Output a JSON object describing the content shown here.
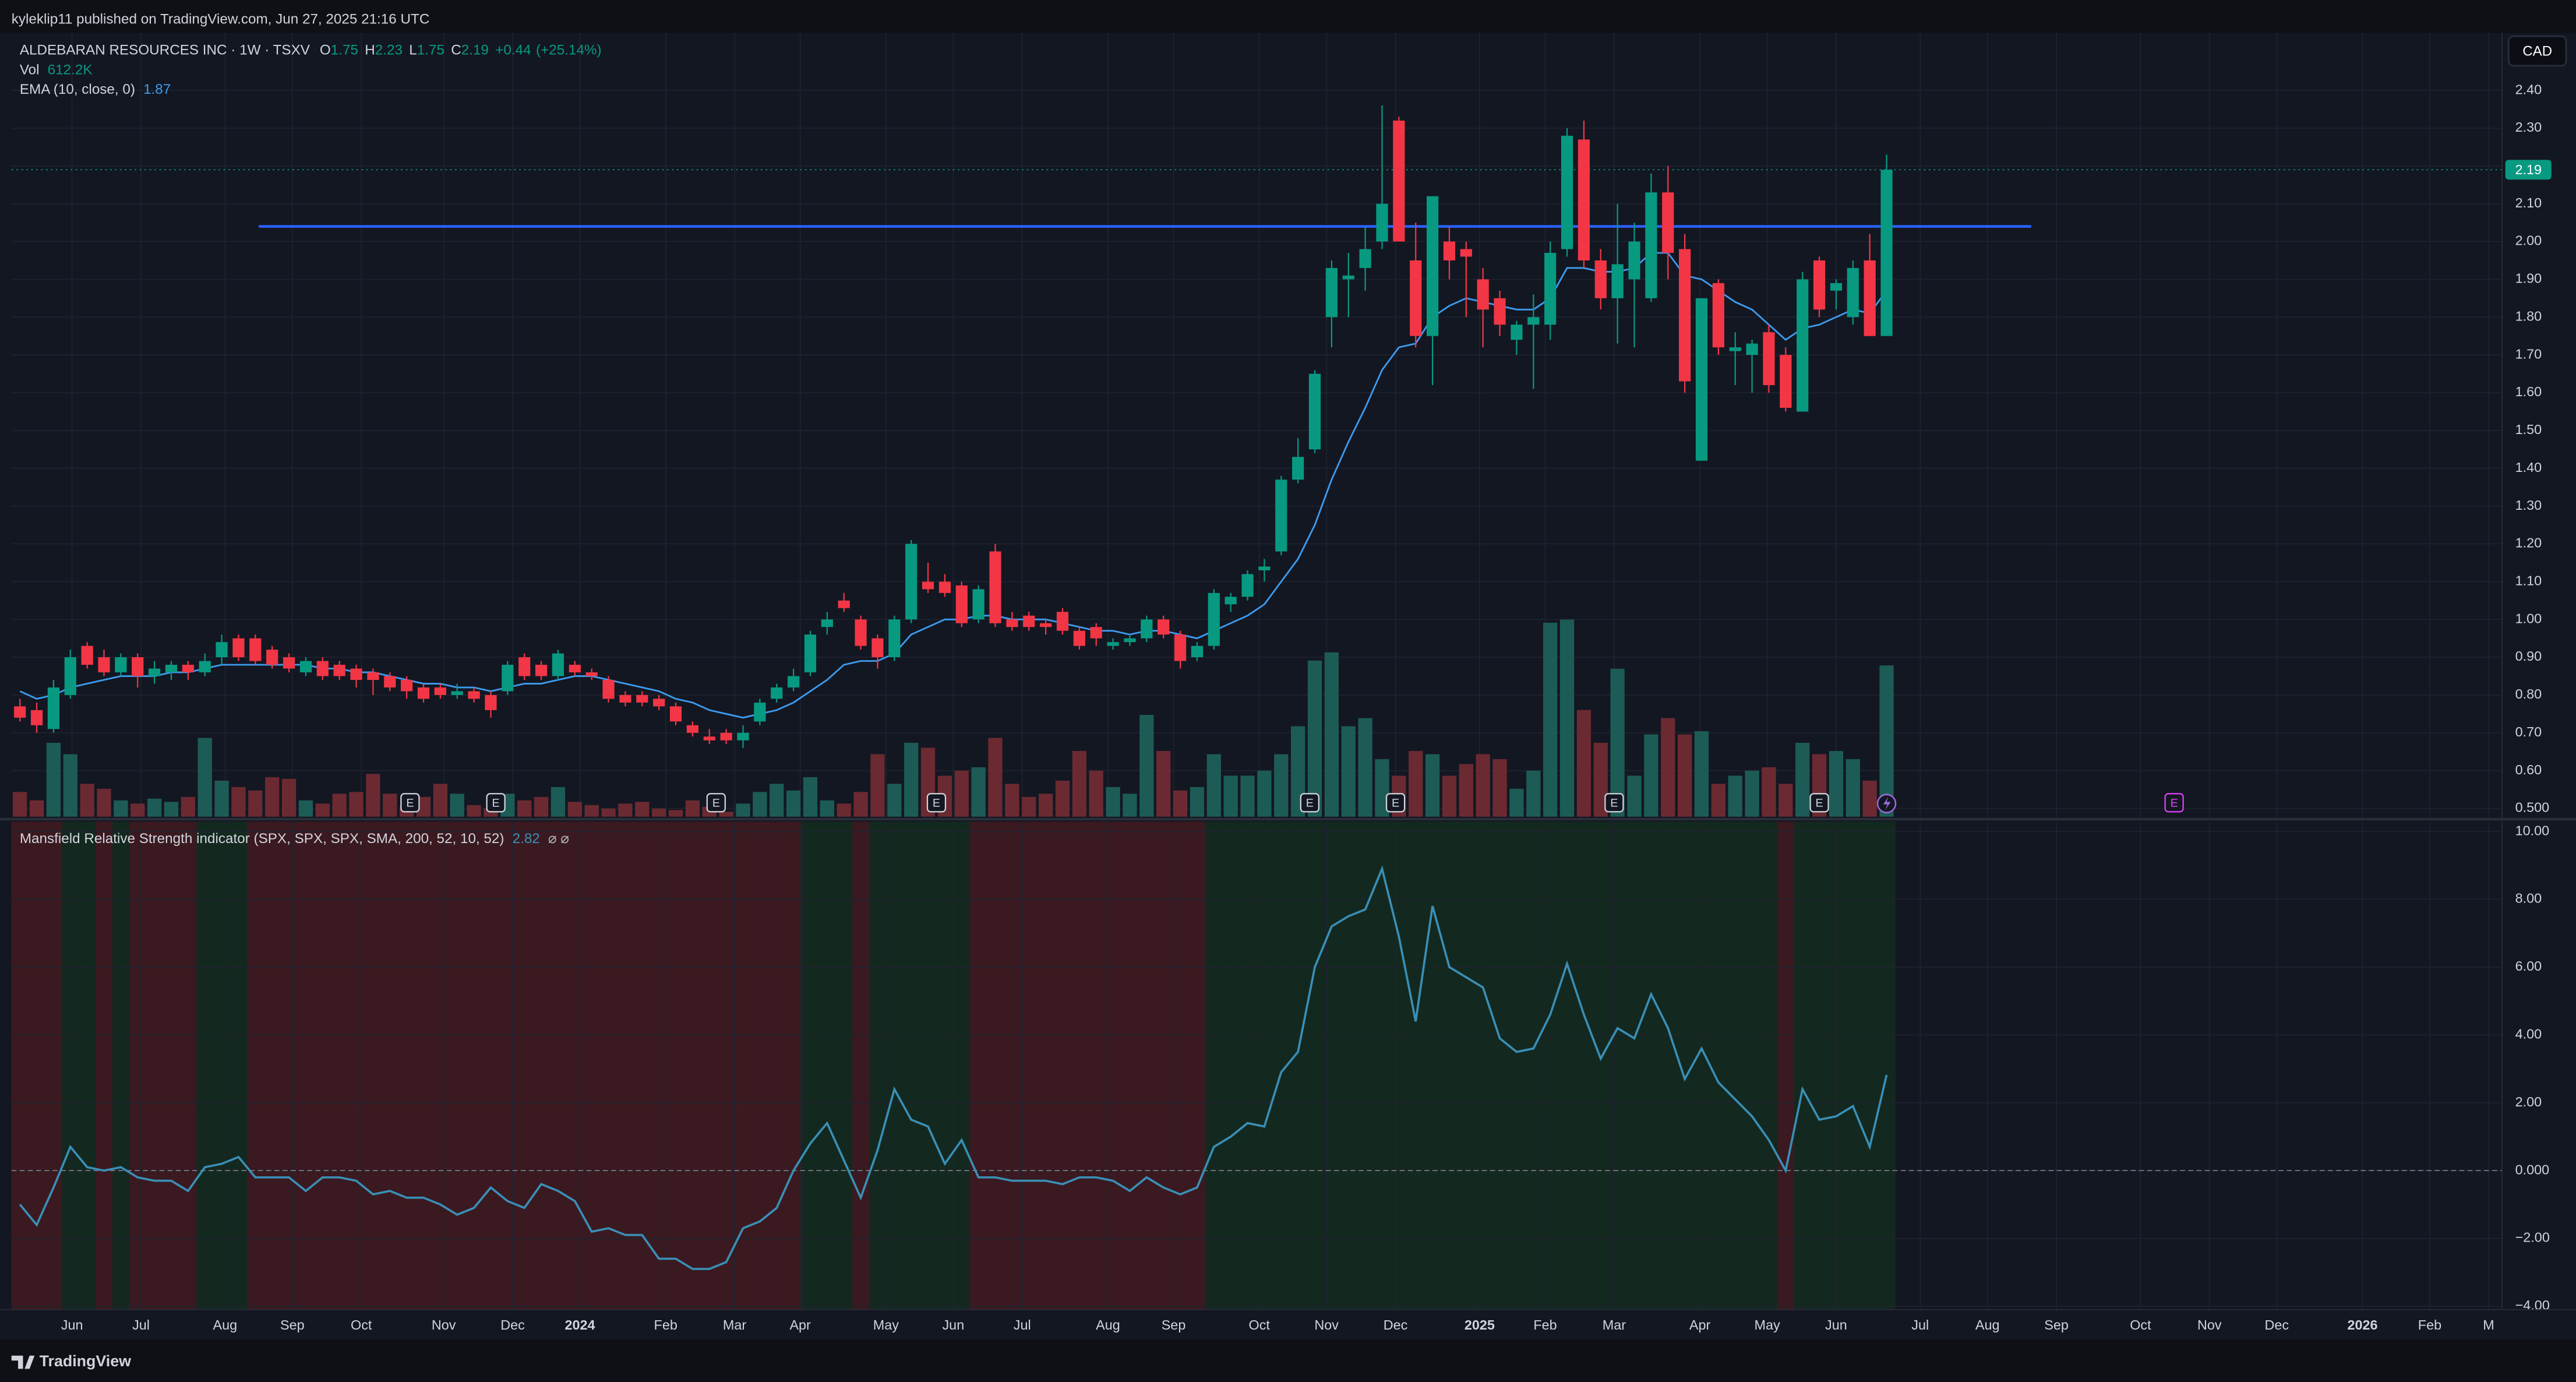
{
  "header": {
    "published": "kyleklip11 published on TradingView.com, Jun 27, 2025 21:16 UTC",
    "currency": "CAD"
  },
  "footer": {
    "brand": "TradingView"
  },
  "chart_data": [
    {
      "type": "candlestick",
      "title": "ALDEBARAN RESOURCES INC · 1W · TSXV",
      "ohlc_keys": [
        "O",
        "H",
        "L",
        "C"
      ],
      "change": {
        "value": 0.44,
        "label": "+0.44"
      },
      "change_pct": {
        "value": 25.14,
        "label": "(+25.14%)"
      },
      "open": [
        0.77,
        0.76,
        0.71,
        0.8,
        0.93,
        0.9,
        0.86,
        0.9,
        0.85,
        0.86,
        0.88,
        0.86,
        0.9,
        0.95,
        0.95,
        0.92,
        0.9,
        0.86,
        0.89,
        0.88,
        0.87,
        0.86,
        0.85,
        0.84,
        0.82,
        0.82,
        0.8,
        0.81,
        0.8,
        0.81,
        0.9,
        0.88,
        0.85,
        0.88,
        0.86,
        0.84,
        0.8,
        0.8,
        0.79,
        0.77,
        0.72,
        0.69,
        0.7,
        0.68,
        0.73,
        0.79,
        0.82,
        0.86,
        0.98,
        1.05,
        1.0,
        0.95,
        0.9,
        1.0,
        1.1,
        1.1,
        1.09,
        1.0,
        1.18,
        1.0,
        1.01,
        0.99,
        1.02,
        0.97,
        0.98,
        0.93,
        0.94,
        0.95,
        1.0,
        0.96,
        0.9,
        0.93,
        1.04,
        1.06,
        1.13,
        1.18,
        1.37,
        1.45,
        1.8,
        1.9,
        1.93,
        2.0,
        2.32,
        1.95,
        1.75,
        2.0,
        1.98,
        1.9,
        1.85,
        1.74,
        1.78,
        1.78,
        1.98,
        2.27,
        1.95,
        1.85,
        1.9,
        1.85,
        2.13,
        1.98,
        1.42,
        1.89,
        1.71,
        1.7,
        1.76,
        1.7,
        1.55,
        1.95,
        1.87,
        1.8,
        1.95,
        1.75
      ],
      "high": [
        0.79,
        0.78,
        0.84,
        0.92,
        0.94,
        0.92,
        0.91,
        0.91,
        0.89,
        0.89,
        0.89,
        0.91,
        0.96,
        0.96,
        0.96,
        0.93,
        0.91,
        0.9,
        0.9,
        0.89,
        0.88,
        0.87,
        0.86,
        0.85,
        0.83,
        0.83,
        0.83,
        0.82,
        0.81,
        0.89,
        0.91,
        0.89,
        0.92,
        0.89,
        0.87,
        0.85,
        0.81,
        0.81,
        0.8,
        0.78,
        0.73,
        0.71,
        0.71,
        0.72,
        0.79,
        0.83,
        0.87,
        0.97,
        1.02,
        1.07,
        1.01,
        0.96,
        1.01,
        1.21,
        1.15,
        1.12,
        1.1,
        1.09,
        1.2,
        1.02,
        1.02,
        1.0,
        1.03,
        0.98,
        0.99,
        0.95,
        0.96,
        1.01,
        1.01,
        0.97,
        0.94,
        1.08,
        1.07,
        1.13,
        1.16,
        1.38,
        1.48,
        1.66,
        1.95,
        1.97,
        2.04,
        2.36,
        2.33,
        2.05,
        2.12,
        2.04,
        2.0,
        1.93,
        1.87,
        1.79,
        1.86,
        2.0,
        2.3,
        2.32,
        1.98,
        2.1,
        2.05,
        2.18,
        2.2,
        2.02,
        1.85,
        1.9,
        1.76,
        1.74,
        1.78,
        1.72,
        1.92,
        1.96,
        1.9,
        1.95,
        2.02,
        2.23
      ],
      "low": [
        0.73,
        0.7,
        0.7,
        0.79,
        0.87,
        0.85,
        0.85,
        0.82,
        0.83,
        0.84,
        0.84,
        0.85,
        0.88,
        0.89,
        0.88,
        0.87,
        0.86,
        0.85,
        0.84,
        0.84,
        0.82,
        0.8,
        0.81,
        0.79,
        0.78,
        0.79,
        0.79,
        0.78,
        0.74,
        0.8,
        0.84,
        0.84,
        0.84,
        0.85,
        0.84,
        0.78,
        0.77,
        0.77,
        0.76,
        0.72,
        0.69,
        0.67,
        0.67,
        0.66,
        0.72,
        0.78,
        0.81,
        0.85,
        0.96,
        1.02,
        0.92,
        0.87,
        0.89,
        0.99,
        1.07,
        1.06,
        0.98,
        0.99,
        0.98,
        0.97,
        0.97,
        0.96,
        0.96,
        0.92,
        0.93,
        0.92,
        0.93,
        0.94,
        0.95,
        0.87,
        0.89,
        0.92,
        1.02,
        1.05,
        1.1,
        1.17,
        1.36,
        1.44,
        1.72,
        1.8,
        1.87,
        1.98,
        2.0,
        1.72,
        1.62,
        1.9,
        1.8,
        1.72,
        1.75,
        1.7,
        1.61,
        1.74,
        1.96,
        1.93,
        1.82,
        1.73,
        1.72,
        1.84,
        1.9,
        1.6,
        1.42,
        1.7,
        1.62,
        1.6,
        1.6,
        1.55,
        1.55,
        1.8,
        1.82,
        1.78,
        1.75,
        1.75
      ],
      "close": [
        0.74,
        0.72,
        0.82,
        0.9,
        0.88,
        0.86,
        0.9,
        0.85,
        0.87,
        0.88,
        0.86,
        0.89,
        0.94,
        0.9,
        0.89,
        0.88,
        0.87,
        0.89,
        0.85,
        0.85,
        0.84,
        0.84,
        0.82,
        0.81,
        0.79,
        0.8,
        0.81,
        0.79,
        0.76,
        0.88,
        0.85,
        0.85,
        0.91,
        0.86,
        0.85,
        0.79,
        0.78,
        0.78,
        0.77,
        0.73,
        0.7,
        0.68,
        0.68,
        0.7,
        0.78,
        0.82,
        0.85,
        0.96,
        1.0,
        1.03,
        0.93,
        0.9,
        1.0,
        1.2,
        1.08,
        1.07,
        0.99,
        1.08,
        0.99,
        0.98,
        0.98,
        0.98,
        0.97,
        0.93,
        0.95,
        0.94,
        0.95,
        1.0,
        0.96,
        0.89,
        0.93,
        1.07,
        1.06,
        1.12,
        1.14,
        1.37,
        1.43,
        1.65,
        1.93,
        1.91,
        1.98,
        2.1,
        2.0,
        1.75,
        2.12,
        1.95,
        1.96,
        1.82,
        1.78,
        1.78,
        1.8,
        1.97,
        2.28,
        1.95,
        1.85,
        1.94,
        2.0,
        2.13,
        1.97,
        1.63,
        1.85,
        1.72,
        1.72,
        1.73,
        1.62,
        1.56,
        1.9,
        1.82,
        1.89,
        1.93,
        1.75,
        2.19
      ],
      "up_color": "#089981",
      "down_color": "#f23645",
      "volume": {
        "name": "Vol",
        "last_label": "612.2K",
        "up_color": "#1d5c56",
        "down_color": "#6b2a31",
        "values": [
          100000,
          66000,
          299000,
          253000,
          133000,
          113000,
          66000,
          53000,
          73000,
          60000,
          80000,
          319000,
          146000,
          120000,
          106000,
          160000,
          153000,
          66000,
          53000,
          93000,
          100000,
          173000,
          93000,
          40000,
          80000,
          133000,
          93000,
          47000,
          33000,
          93000,
          66000,
          80000,
          120000,
          60000,
          47000,
          33000,
          53000,
          60000,
          33000,
          27000,
          66000,
          40000,
          20000,
          53000,
          100000,
          133000,
          106000,
          160000,
          66000,
          53000,
          100000,
          253000,
          133000,
          299000,
          279000,
          166000,
          186000,
          200000,
          319000,
          133000,
          80000,
          93000,
          146000,
          266000,
          186000,
          120000,
          93000,
          412000,
          266000,
          106000,
          120000,
          253000,
          166000,
          166000,
          186000,
          253000,
          366000,
          632000,
          665000,
          366000,
          399000,
          233000,
          166000,
          266000,
          253000,
          166000,
          213000,
          253000,
          233000,
          113000,
          186000,
          785000,
          798000,
          432000,
          299000,
          599000,
          166000,
          333000,
          399000,
          333000,
          346000,
          133000,
          166000,
          186000,
          200000,
          133000,
          299000,
          253000,
          266000,
          233000,
          146000,
          612200
        ]
      },
      "ema": {
        "name": "EMA (10, close, 0)",
        "color": "#3d9cf0",
        "values": [
          0.81,
          0.79,
          0.8,
          0.82,
          0.83,
          0.84,
          0.85,
          0.85,
          0.85,
          0.86,
          0.86,
          0.87,
          0.88,
          0.88,
          0.88,
          0.88,
          0.88,
          0.88,
          0.87,
          0.87,
          0.86,
          0.86,
          0.85,
          0.84,
          0.83,
          0.83,
          0.82,
          0.82,
          0.81,
          0.82,
          0.83,
          0.83,
          0.84,
          0.85,
          0.85,
          0.84,
          0.83,
          0.82,
          0.81,
          0.79,
          0.78,
          0.76,
          0.75,
          0.74,
          0.75,
          0.76,
          0.78,
          0.81,
          0.84,
          0.88,
          0.89,
          0.89,
          0.91,
          0.96,
          0.98,
          1.0,
          1.0,
          1.01,
          1.01,
          1.0,
          1.0,
          1.0,
          0.99,
          0.98,
          0.97,
          0.97,
          0.96,
          0.97,
          0.97,
          0.96,
          0.95,
          0.97,
          0.99,
          1.01,
          1.04,
          1.1,
          1.16,
          1.25,
          1.37,
          1.47,
          1.56,
          1.66,
          1.72,
          1.73,
          1.8,
          1.83,
          1.85,
          1.84,
          1.83,
          1.82,
          1.82,
          1.85,
          1.93,
          1.93,
          1.92,
          1.92,
          1.93,
          1.97,
          1.97,
          1.91,
          1.9,
          1.87,
          1.84,
          1.82,
          1.78,
          1.74,
          1.77,
          1.78,
          1.8,
          1.82,
          1.81,
          1.87
        ]
      },
      "hline": {
        "value": 2.04,
        "x": [
          14.2,
          119.6
        ],
        "color": "#2962ff"
      },
      "events": [
        {
          "x": 23.2,
          "label": "E"
        },
        {
          "x": 28.3,
          "label": "E"
        },
        {
          "x": 41.4,
          "label": "E"
        },
        {
          "x": 54.5,
          "label": "E"
        },
        {
          "x": 76.7,
          "label": "E"
        },
        {
          "x": 81.8,
          "label": "E"
        },
        {
          "x": 94.8,
          "label": "E"
        },
        {
          "x": 107.0,
          "label": "E"
        },
        {
          "x": 128.1,
          "label": "E",
          "future": true
        }
      ],
      "xlim": [
        -0.5,
        147.6
      ],
      "xticks": [
        {
          "value": 3.1,
          "label": "Jun"
        },
        {
          "value": 7.2,
          "label": "Jul"
        },
        {
          "value": 12.2,
          "label": "Aug"
        },
        {
          "value": 16.2,
          "label": "Sep"
        },
        {
          "value": 20.3,
          "label": "Oct"
        },
        {
          "value": 25.2,
          "label": "Nov"
        },
        {
          "value": 29.3,
          "label": "Dec"
        },
        {
          "value": 33.3,
          "label": "2024"
        },
        {
          "value": 38.4,
          "label": "Feb"
        },
        {
          "value": 42.5,
          "label": "Mar"
        },
        {
          "value": 46.4,
          "label": "Apr"
        },
        {
          "value": 51.5,
          "label": "May"
        },
        {
          "value": 55.5,
          "label": "Jun"
        },
        {
          "value": 59.6,
          "label": "Jul"
        },
        {
          "value": 64.7,
          "label": "Aug"
        },
        {
          "value": 68.6,
          "label": "Sep"
        },
        {
          "value": 73.7,
          "label": "Oct"
        },
        {
          "value": 77.7,
          "label": "Nov"
        },
        {
          "value": 81.8,
          "label": "Dec"
        },
        {
          "value": 86.8,
          "label": "2025"
        },
        {
          "value": 90.7,
          "label": "Feb"
        },
        {
          "value": 94.8,
          "label": "Mar"
        },
        {
          "value": 99.9,
          "label": "Apr"
        },
        {
          "value": 103.9,
          "label": "May"
        },
        {
          "value": 108.0,
          "label": "Jun"
        },
        {
          "value": 113.0,
          "label": "Jul"
        },
        {
          "value": 117.0,
          "label": "Aug"
        },
        {
          "value": 121.1,
          "label": "Sep"
        },
        {
          "value": 126.1,
          "label": "Oct"
        },
        {
          "value": 130.2,
          "label": "Nov"
        },
        {
          "value": 134.2,
          "label": "Dec"
        },
        {
          "value": 139.3,
          "label": "2026"
        },
        {
          "value": 143.3,
          "label": "Feb"
        },
        {
          "value": 146.8,
          "label": "M"
        }
      ],
      "ylim": [
        0.478,
        2.552
      ],
      "yticks": [
        {
          "value": 2.4,
          "label": "2.40"
        },
        {
          "value": 2.3,
          "label": "2.30"
        },
        {
          "value": 2.2,
          "label": "2.20"
        },
        {
          "value": 2.1,
          "label": "2.10"
        },
        {
          "value": 2.0,
          "label": "2.00"
        },
        {
          "value": 1.9,
          "label": "1.90"
        },
        {
          "value": 1.8,
          "label": "1.80"
        },
        {
          "value": 1.7,
          "label": "1.70"
        },
        {
          "value": 1.6,
          "label": "1.60"
        },
        {
          "value": 1.5,
          "label": "1.50"
        },
        {
          "value": 1.4,
          "label": "1.40"
        },
        {
          "value": 1.3,
          "label": "1.30"
        },
        {
          "value": 1.2,
          "label": "1.20"
        },
        {
          "value": 1.1,
          "label": "1.10"
        },
        {
          "value": 1.0,
          "label": "1.00"
        },
        {
          "value": 0.9,
          "label": "0.90"
        },
        {
          "value": 0.8,
          "label": "0.80"
        },
        {
          "value": 0.7,
          "label": "0.70"
        },
        {
          "value": 0.6,
          "label": "0.60"
        },
        {
          "value": 0.5,
          "label": "0.500"
        }
      ],
      "grid": true
    },
    {
      "type": "line",
      "title": "Mansfield Relative Strength indicator (SPX, SPX, SPX, SMA, 200, 52, 10, 52)",
      "symbols": "⌀ ⌀",
      "color": "#3a8fb7",
      "positive_color": "#13291f",
      "negative_color": "#3a1a20",
      "zero_line": 0,
      "values": [
        -1.0,
        -1.6,
        -0.5,
        0.7,
        0.1,
        0.0,
        0.1,
        -0.2,
        -0.3,
        -0.3,
        -0.6,
        0.1,
        0.2,
        0.4,
        -0.2,
        -0.2,
        -0.2,
        -0.6,
        -0.2,
        -0.2,
        -0.3,
        -0.7,
        -0.6,
        -0.8,
        -0.8,
        -1.0,
        -1.3,
        -1.1,
        -0.5,
        -0.9,
        -1.1,
        -0.4,
        -0.6,
        -0.9,
        -1.8,
        -1.7,
        -1.9,
        -1.9,
        -2.6,
        -2.6,
        -2.9,
        -2.9,
        -2.7,
        -1.7,
        -1.5,
        -1.1,
        0.0,
        0.8,
        1.4,
        0.3,
        -0.8,
        0.6,
        2.4,
        1.5,
        1.3,
        0.2,
        0.9,
        -0.2,
        -0.2,
        -0.3,
        -0.3,
        -0.3,
        -0.4,
        -0.2,
        -0.2,
        -0.3,
        -0.6,
        -0.2,
        -0.5,
        -0.7,
        -0.5,
        0.7,
        1.0,
        1.4,
        1.3,
        2.9,
        3.5,
        6.0,
        7.2,
        7.5,
        7.7,
        8.9,
        6.9,
        4.4,
        7.8,
        6.0,
        5.7,
        5.4,
        3.9,
        3.5,
        3.6,
        4.6,
        6.1,
        4.6,
        3.3,
        4.2,
        3.9,
        5.2,
        4.2,
        2.7,
        3.6,
        2.6,
        2.1,
        1.6,
        0.9,
        0.0,
        2.4,
        1.5,
        1.6,
        1.9,
        0.7,
        2.82
      ],
      "ylim": [
        -4.1,
        10.29
      ],
      "yticks": [
        {
          "value": 10,
          "label": "10.00"
        },
        {
          "value": 8,
          "label": "8.00"
        },
        {
          "value": 6,
          "label": "6.00"
        },
        {
          "value": 4,
          "label": "4.00"
        },
        {
          "value": 2,
          "label": "2.00"
        },
        {
          "value": 0,
          "label": "0.000"
        },
        {
          "value": -2,
          "label": "−2.00"
        },
        {
          "value": -4,
          "label": "−4.00"
        }
      ]
    }
  ]
}
